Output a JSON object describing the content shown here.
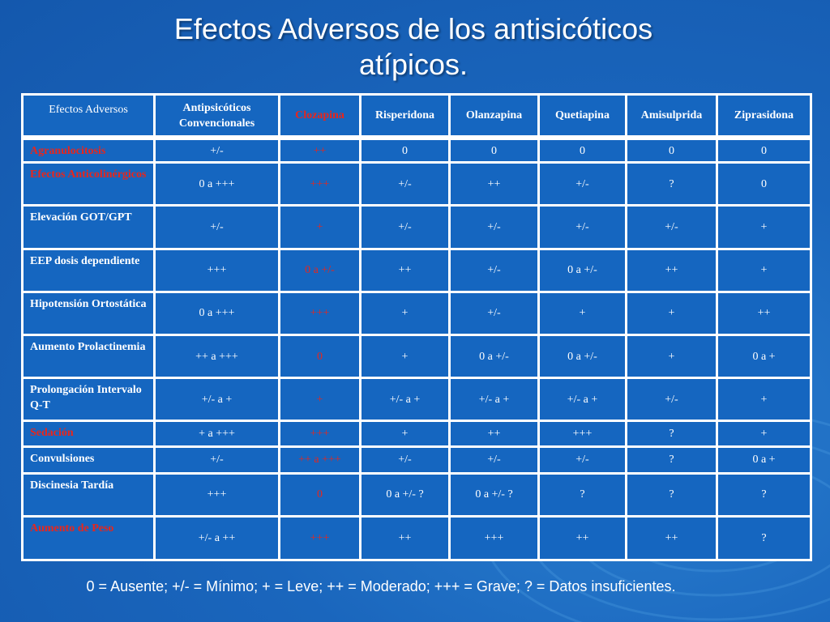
{
  "slide": {
    "title_line1": "Efectos Adversos de los antisicóticos",
    "title_line2": "atípicos.",
    "footnote": "0 = Ausente; +/- = Mínimo; + = Leve; ++ = Moderado; +++ = Grave; ? = Datos insuficientes."
  },
  "table": {
    "headers": [
      "Efectos Adversos",
      "Antipsicóticos Convencionales",
      "Clozapina",
      "Risperidona",
      "Olanzapina",
      "Quetiapina",
      "Amisulprida",
      "Ziprasidona"
    ],
    "rows": [
      {
        "effect": "Agranulocitosis",
        "values": [
          "+/-",
          "++",
          "0",
          "0",
          "0",
          "0",
          "0"
        ]
      },
      {
        "effect": "Efectos Anticolinérgicos",
        "values": [
          "0 a +++",
          "+++",
          "+/-",
          "++",
          "+/-",
          "?",
          "0"
        ]
      },
      {
        "effect": "Elevación GOT/GPT",
        "values": [
          "+/-",
          "+",
          "+/-",
          "+/-",
          "+/-",
          "+/-",
          "+"
        ]
      },
      {
        "effect": "EEP dosis dependiente",
        "values": [
          "+++",
          "0 a +/-",
          "++",
          "+/-",
          "0 a +/-",
          "++",
          "+"
        ]
      },
      {
        "effect": "Hipotensión Ortostática",
        "values": [
          "0 a +++",
          "+++",
          "+",
          "+/-",
          "+",
          "+",
          "++"
        ]
      },
      {
        "effect": "Aumento Prolactinemia",
        "values": [
          "++ a +++",
          "0",
          "+",
          "0 a +/-",
          "0 a +/-",
          "+",
          "0 a +"
        ]
      },
      {
        "effect": "Prolongación Intervalo Q-T",
        "values": [
          "+/- a +",
          "+",
          "+/- a +",
          "+/- a +",
          "+/- a +",
          "+/-",
          "+"
        ]
      },
      {
        "effect": "Sedación",
        "values": [
          "+ a +++",
          "+++",
          "+",
          "++",
          "+++",
          "?",
          "+"
        ]
      },
      {
        "effect": "Convulsiones",
        "values": [
          "+/-",
          "++ a +++",
          "+/-",
          "+/-",
          "+/-",
          "?",
          "0 a +"
        ]
      },
      {
        "effect": "Discinesia Tardía",
        "values": [
          "+++",
          "0",
          "0 a +/- ?",
          "0 a +/- ?",
          "?",
          "?",
          "?"
        ]
      },
      {
        "effect": "Aumento de Peso",
        "values": [
          "+/- a ++",
          "+++",
          "++",
          "+++",
          "++",
          "++",
          "?"
        ]
      }
    ]
  },
  "colors": {
    "background": "#1566c0",
    "highlight_red": "#e8261c",
    "text": "#ffffff"
  }
}
